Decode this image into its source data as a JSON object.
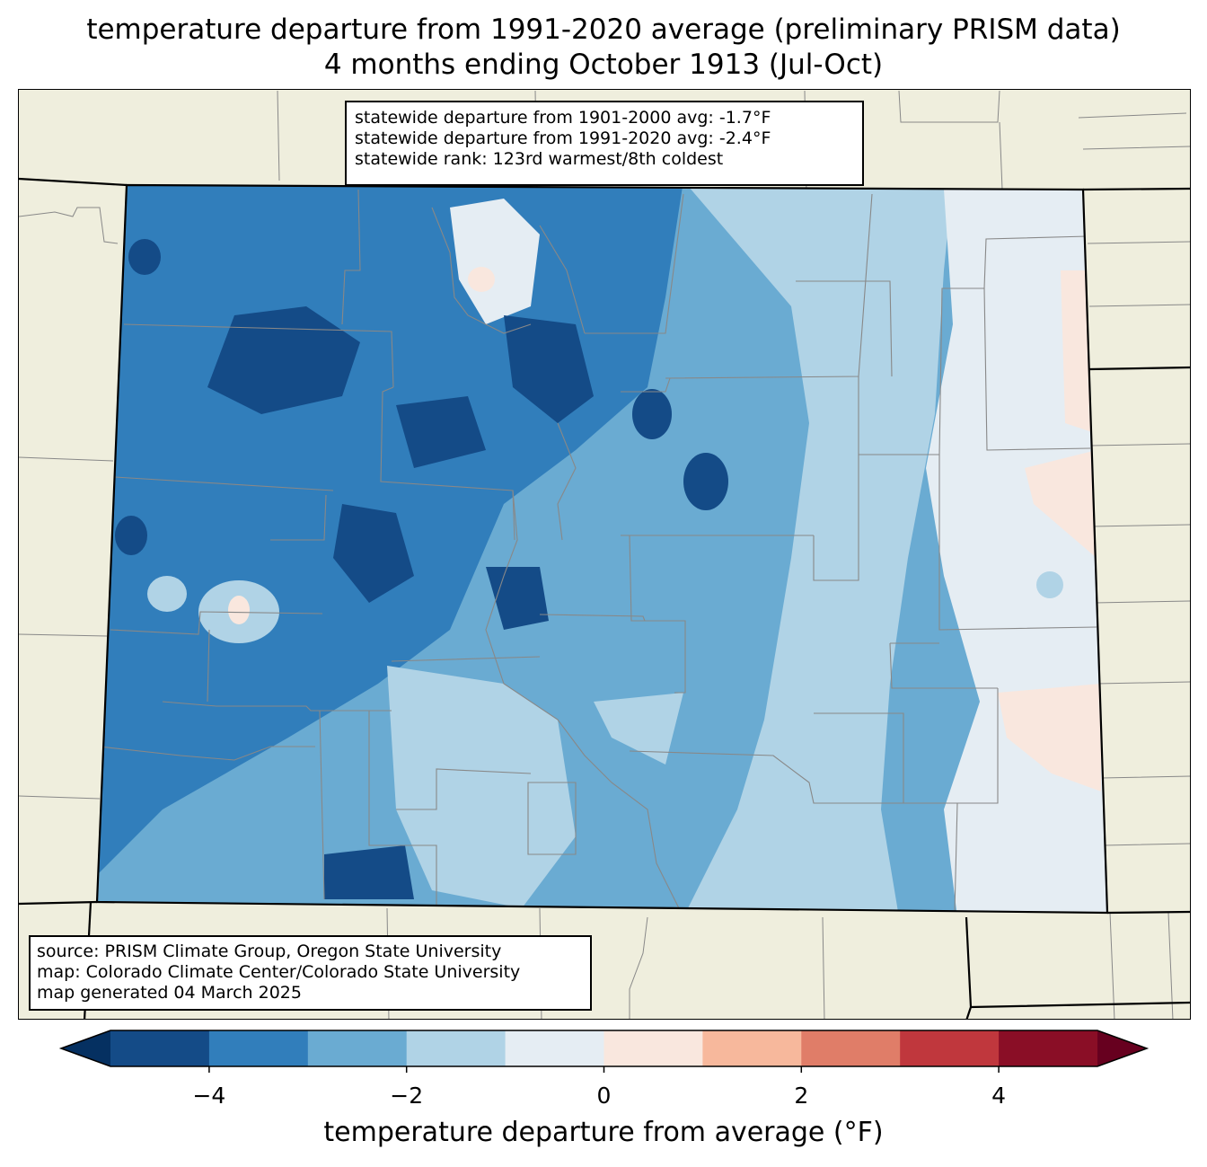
{
  "title": {
    "line1": "temperature departure from 1991-2020 average (preliminary PRISM data)",
    "line2": "4 months ending October 1913 (Jul-Oct)"
  },
  "stats": {
    "line1": "statewide departure from 1901-2000 avg: -1.7°F",
    "line2": "statewide departure from 1991-2020 avg: -2.4°F",
    "line3": "statewide rank: 123rd warmest/8th coldest"
  },
  "credits": {
    "line1": "source: PRISM Climate Group, Oregon State University",
    "line2": "map: Colorado Climate Center/Colorado State University",
    "line3": "map generated 04 March 2025"
  },
  "colorbar": {
    "label": "temperature departure from average (°F)",
    "min": -5,
    "max": 5,
    "ticks": [
      {
        "value": -4,
        "label": "−4"
      },
      {
        "value": -2,
        "label": "−2"
      },
      {
        "value": 0,
        "label": "0"
      },
      {
        "value": 2,
        "label": "2"
      },
      {
        "value": 4,
        "label": "4"
      }
    ],
    "under_color": "#053061",
    "over_color": "#67001f",
    "bins": [
      {
        "from": -5,
        "to": -4,
        "color": "#144b87"
      },
      {
        "from": -4,
        "to": -3,
        "color": "#317ebb"
      },
      {
        "from": -3,
        "to": -2,
        "color": "#6aabd2"
      },
      {
        "from": -2,
        "to": -1,
        "color": "#b0d3e6"
      },
      {
        "from": -1,
        "to": 0,
        "color": "#e5edf3"
      },
      {
        "from": 0,
        "to": 1,
        "color": "#f9e7de"
      },
      {
        "from": 1,
        "to": 2,
        "color": "#f7b89c"
      },
      {
        "from": 2,
        "to": 3,
        "color": "#e07d68"
      },
      {
        "from": 3,
        "to": 4,
        "color": "#c0373d"
      },
      {
        "from": 4,
        "to": 5,
        "color": "#8a0e26"
      }
    ]
  },
  "map_colors": {
    "background_land": "#efeedd",
    "county_lines": "#888888",
    "state_lines": "#000000"
  }
}
